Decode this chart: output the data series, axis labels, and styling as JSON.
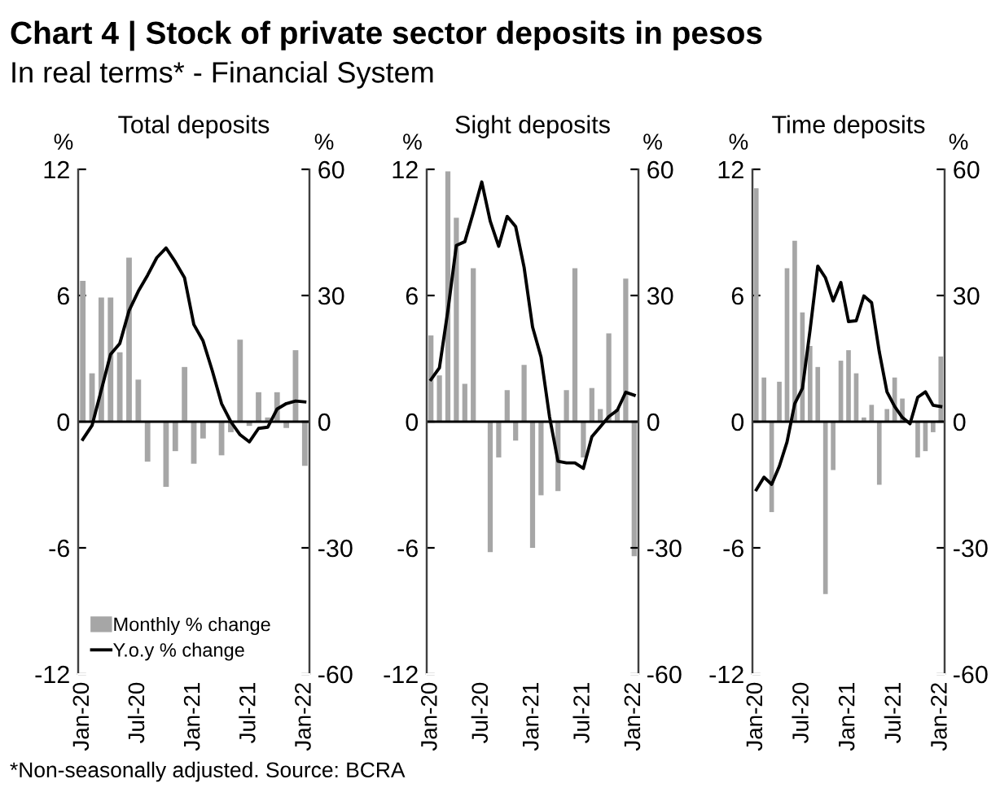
{
  "chart_data": [
    {
      "type": "bar",
      "title": "Total deposits",
      "ylabel": "%",
      "y2label": "%",
      "annotations": [
        "Chart 4 | Stock of private sector deposits in pesos",
        "In real terms* - Financial System",
        "*Non-seasonally adjusted. Source: BCRA"
      ],
      "categories": [
        "Jan-20",
        null,
        null,
        null,
        null,
        null,
        "Jul-20",
        null,
        null,
        null,
        null,
        null,
        "Jan-21",
        null,
        null,
        null,
        null,
        null,
        "Jul-21",
        null,
        null,
        null,
        null,
        null,
        "Jan-22"
      ],
      "series": [
        {
          "name": "Monthly % change",
          "type": "bar",
          "color": "#a6a6a6",
          "values": [
            6.7,
            2.3,
            5.9,
            5.9,
            3.3,
            7.8,
            2.0,
            -1.9,
            null,
            -3.1,
            -1.4,
            2.6,
            -2.0,
            -0.8,
            0.0,
            -1.6,
            -0.5,
            3.9,
            -0.2,
            1.4,
            0.2,
            1.4,
            -0.3,
            3.4,
            -2.1
          ]
        },
        {
          "name": "Y.o.y % change",
          "type": "line",
          "axis": "y2",
          "color": "#000000",
          "values": [
            -4.2,
            -0.9,
            7.5,
            16.0,
            18.6,
            26.4,
            31.0,
            34.8,
            39.0,
            41.3,
            38.0,
            34.2,
            23.1,
            19.2,
            12.1,
            4.3,
            0.0,
            -3.1,
            -4.8,
            -1.6,
            -1.3,
            3.0,
            4.3,
            4.9,
            4.7
          ]
        }
      ],
      "ylim": [
        -12,
        12
      ],
      "yticks": [
        -12,
        -6,
        0,
        6,
        12
      ],
      "y2lim": [
        -60,
        60
      ],
      "y2ticks": [
        -60,
        -30,
        0,
        30,
        60
      ],
      "ref_lines": [
        {
          "axis": "y",
          "value": 0,
          "color": "#000000"
        }
      ],
      "grid": false,
      "legend": "bottom left",
      "marker": "none",
      "line_style": "solid"
    },
    {
      "type": "bar",
      "title": "Sight deposits",
      "ylabel": "%",
      "y2label": "%",
      "categories": [
        "Jan-20",
        null,
        null,
        null,
        null,
        null,
        "Jul-20",
        null,
        null,
        null,
        null,
        null,
        "Jan-21",
        null,
        null,
        null,
        null,
        null,
        "Jul-21",
        null,
        null,
        null,
        null,
        null,
        "Jan-22"
      ],
      "series": [
        {
          "type": "bar",
          "color": "#a6a6a6",
          "values": [
            4.1,
            2.2,
            11.9,
            9.7,
            1.8,
            7.3,
            0.0,
            -6.2,
            -1.7,
            1.5,
            -0.9,
            2.7,
            -6.0,
            -3.5,
            null,
            -3.3,
            1.5,
            7.3,
            -1.7,
            1.6,
            0.6,
            4.2,
            0.6,
            6.8,
            -6.4
          ]
        },
        {
          "type": "line",
          "axis": "y2",
          "color": "#000000",
          "values": [
            10.0,
            12.8,
            26.4,
            41.9,
            42.8,
            49.7,
            57.0,
            47.7,
            41.7,
            48.8,
            46.4,
            36.7,
            22.5,
            15.4,
            1.2,
            -9.4,
            -9.8,
            -9.8,
            -11.1,
            -3.6,
            -1.2,
            1.2,
            2.7,
            7.0,
            6.3
          ]
        }
      ],
      "ylim": [
        -12,
        12
      ],
      "yticks": [
        -12,
        -6,
        0,
        6,
        12
      ],
      "y2lim": [
        -60,
        60
      ],
      "y2ticks": [
        -60,
        -30,
        0,
        30,
        60
      ],
      "ref_lines": [
        {
          "axis": "y",
          "value": 0,
          "color": "#000000"
        }
      ],
      "grid": false,
      "marker": "none",
      "line_style": "solid"
    },
    {
      "type": "bar",
      "title": "Time deposits",
      "ylabel": "%",
      "y2label": "%",
      "categories": [
        "Jan-20",
        null,
        null,
        null,
        null,
        null,
        "Jul-20",
        null,
        null,
        null,
        null,
        null,
        "Jan-21",
        null,
        null,
        null,
        null,
        null,
        "Jul-21",
        null,
        null,
        null,
        null,
        null,
        "Jan-22"
      ],
      "series": [
        {
          "type": "bar",
          "color": "#a6a6a6",
          "values": [
            11.1,
            2.1,
            -4.3,
            1.9,
            7.3,
            8.6,
            5.2,
            3.6,
            2.6,
            -8.2,
            -2.3,
            2.9,
            3.4,
            2.3,
            0.2,
            0.8,
            -3.0,
            0.6,
            2.1,
            1.1,
            0.0,
            -1.7,
            -1.4,
            -0.5,
            3.1
          ]
        },
        {
          "type": "line",
          "axis": "y2",
          "color": "#000000",
          "values": [
            -16.2,
            -13.2,
            -14.9,
            -10.6,
            -4.8,
            4.3,
            7.9,
            21.8,
            37.0,
            34.2,
            28.7,
            33.1,
            23.8,
            24.0,
            29.9,
            28.3,
            16.6,
            7.1,
            3.6,
            1.0,
            -0.5,
            5.8,
            7.1,
            3.9,
            3.6
          ]
        }
      ],
      "ylim": [
        -12,
        12
      ],
      "yticks": [
        -12,
        -6,
        0,
        6,
        12
      ],
      "y2lim": [
        -60,
        60
      ],
      "y2ticks": [
        -60,
        -30,
        0,
        30,
        60
      ],
      "ref_lines": [
        {
          "axis": "y",
          "value": 0,
          "color": "#000000"
        }
      ],
      "grid": false,
      "marker": "none",
      "line_style": "solid"
    }
  ]
}
